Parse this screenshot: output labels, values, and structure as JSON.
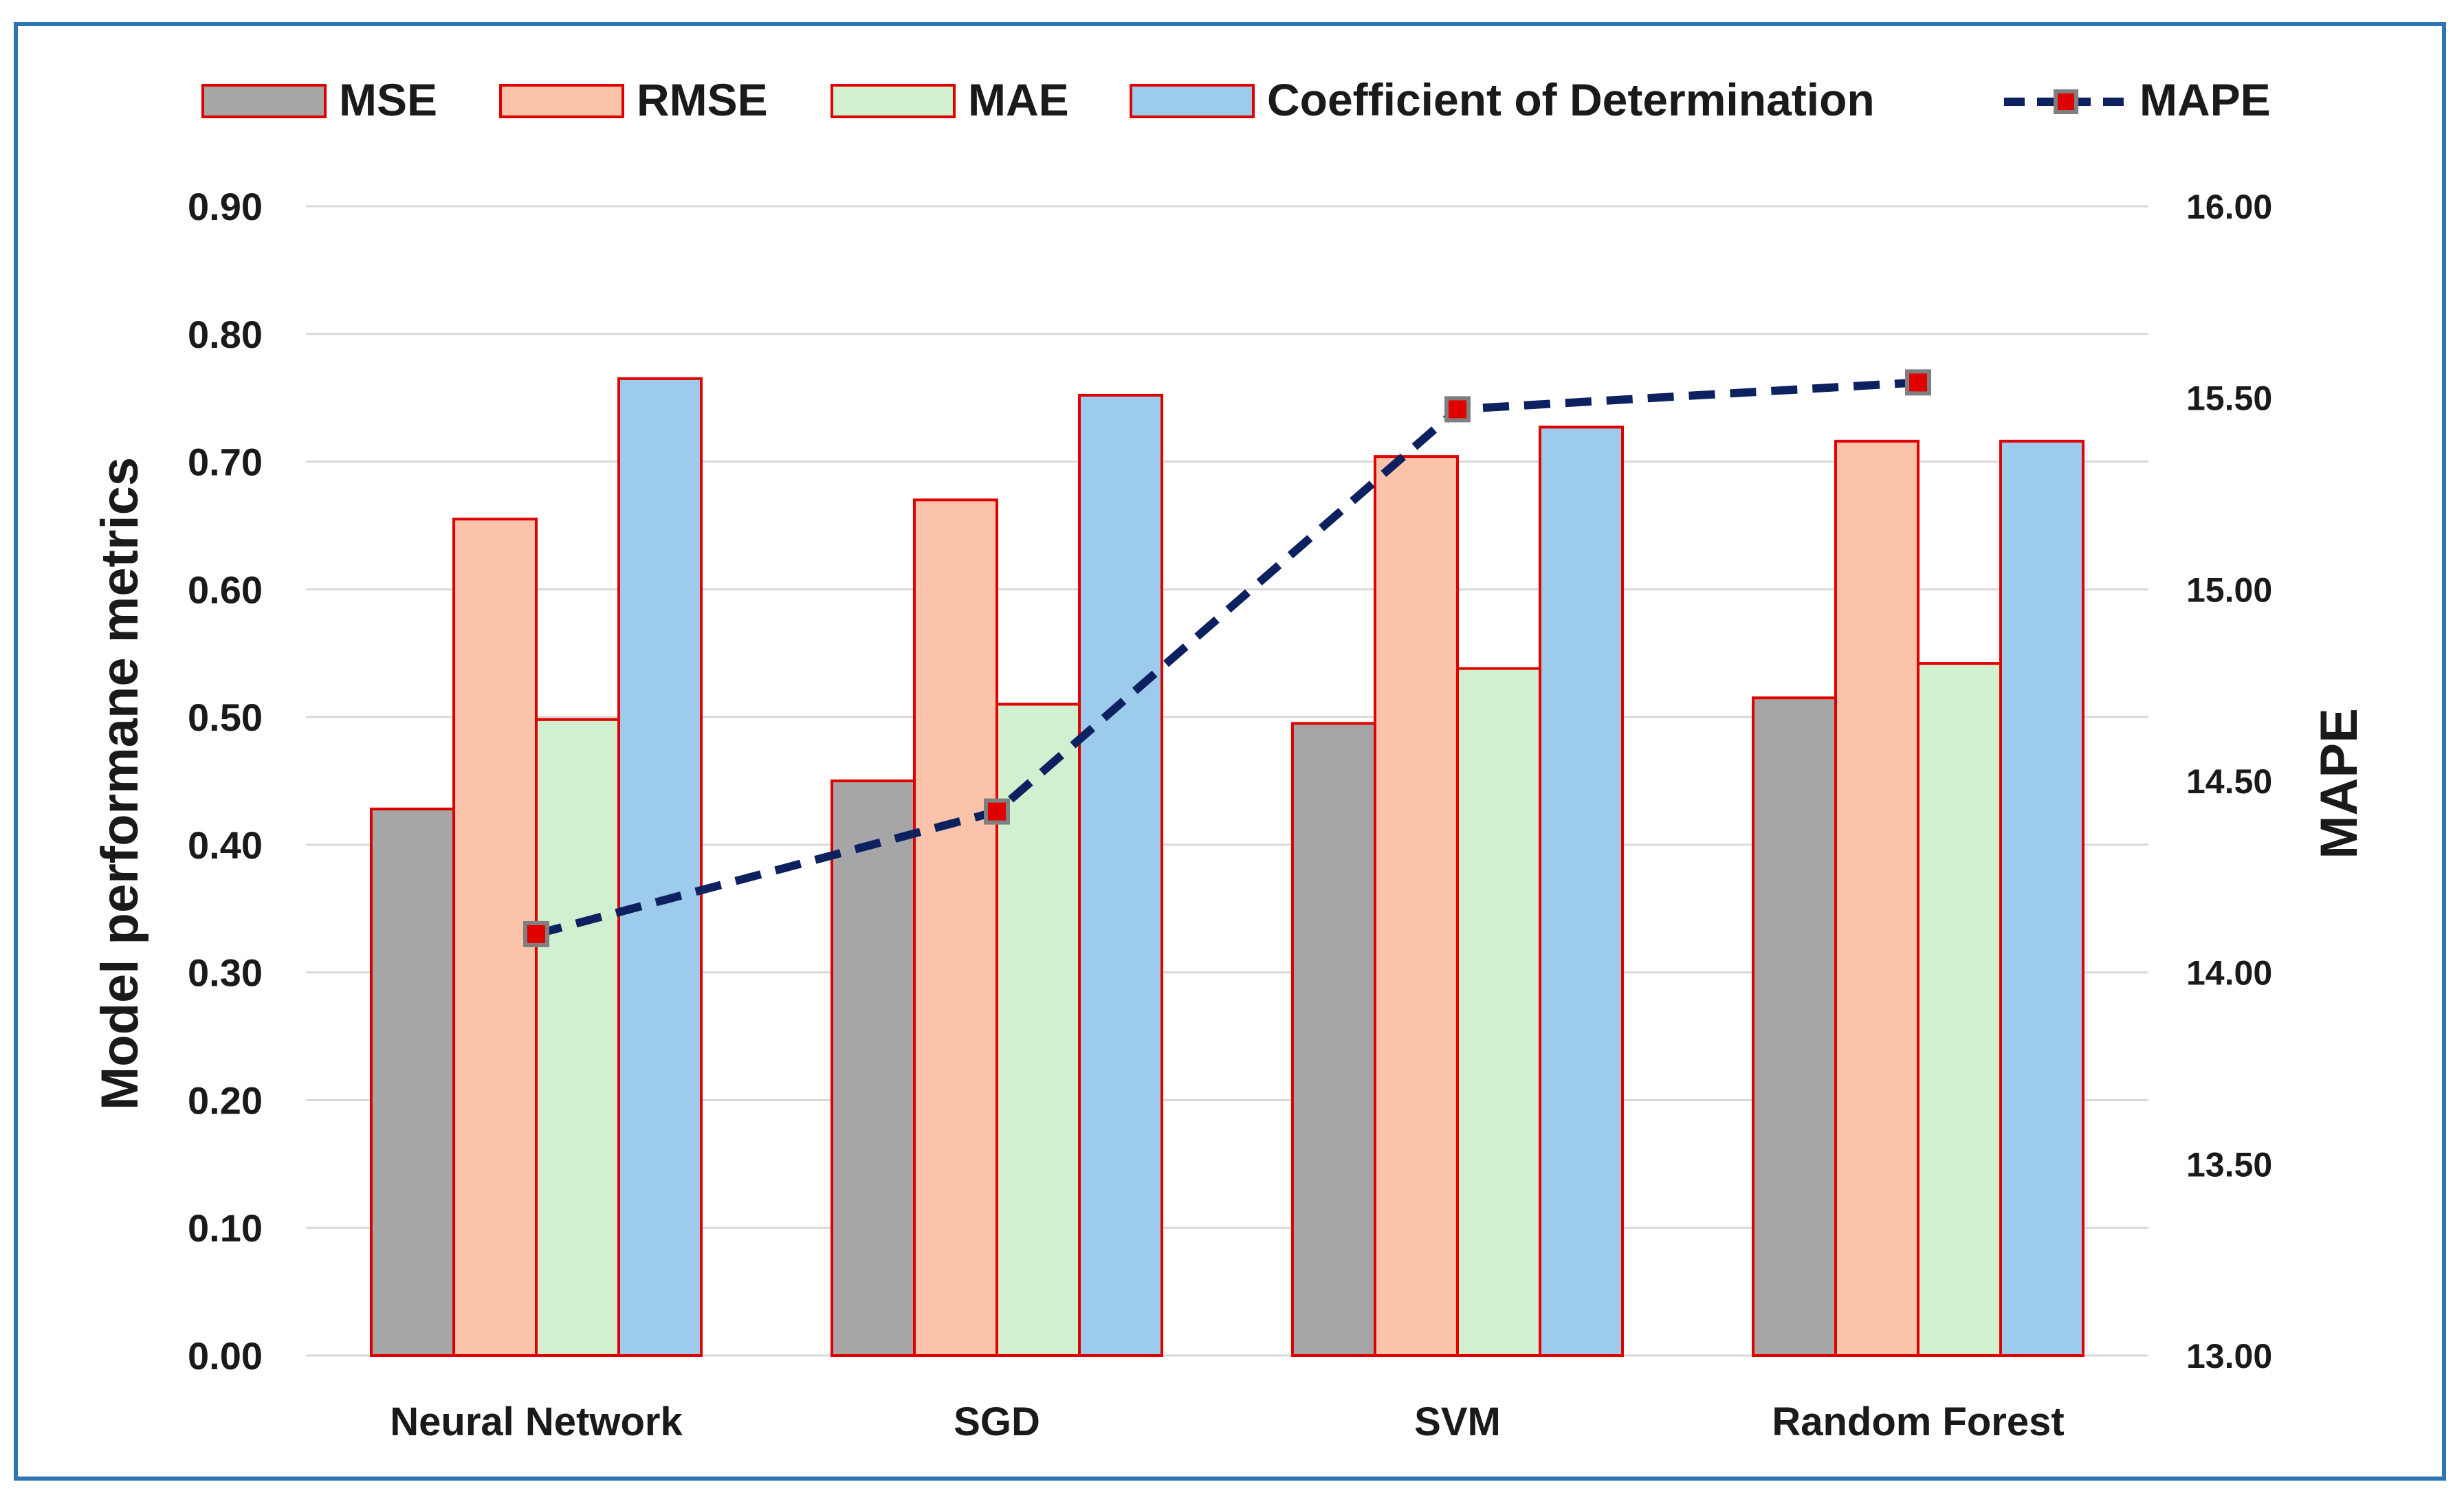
{
  "chart_data": {
    "type": "bar",
    "title": "",
    "categories": [
      "Neural Network",
      "SGD",
      "SVM",
      "Random Forest"
    ],
    "series": [
      {
        "name": "MSE",
        "values": [
          0.428,
          0.45,
          0.495,
          0.515
        ],
        "color": "#a6a6a6"
      },
      {
        "name": "RMSE",
        "values": [
          0.655,
          0.67,
          0.704,
          0.716
        ],
        "color": "#fbc4aa"
      },
      {
        "name": "MAE",
        "values": [
          0.498,
          0.51,
          0.538,
          0.542
        ],
        "color": "#d0f0d0"
      },
      {
        "name": "Coefficient of Determination",
        "values": [
          0.765,
          0.752,
          0.727,
          0.716
        ],
        "color": "#9ccbeb"
      }
    ],
    "line_series": {
      "name": "MAPE",
      "axis": "right",
      "values": [
        14.1,
        14.42,
        15.47,
        15.54
      ],
      "color": "#0d2160",
      "marker_color": "#e00000",
      "marker_border": "#7f7f7f"
    },
    "bar_border_color": "#e00000",
    "ylabel": "Model performane metrics",
    "y2label": "MAPE",
    "ylim": [
      0,
      0.9
    ],
    "y2lim": [
      13,
      16
    ],
    "yticks": [
      "0.00",
      "0.10",
      "0.20",
      "0.30",
      "0.40",
      "0.50",
      "0.60",
      "0.70",
      "0.80",
      "0.90"
    ],
    "y2ticks": [
      "13.00",
      "13.50",
      "14.00",
      "14.50",
      "15.00",
      "15.50",
      "16.00"
    ],
    "grid": true,
    "legend": "top"
  }
}
